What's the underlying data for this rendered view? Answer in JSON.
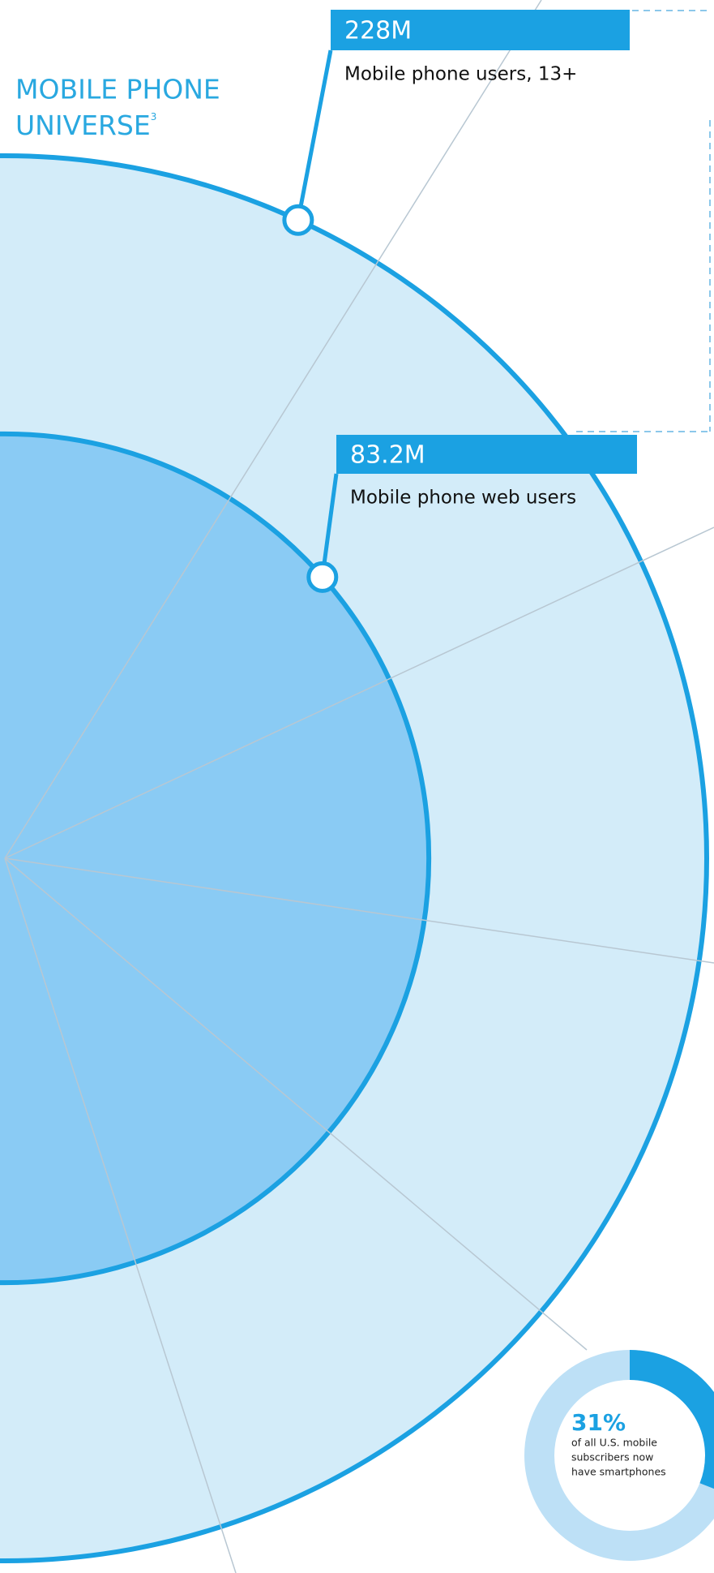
{
  "title_lines": [
    "MOBILE PHONE",
    "UNIVERSE"
  ],
  "footnote_mark": "3",
  "callouts": [
    {
      "value": 228,
      "value_label": "228M",
      "label": "Mobile phone users, 13+"
    },
    {
      "value": 83.2,
      "value_label": "83.2M",
      "label": "Mobile phone web users"
    }
  ],
  "donut": {
    "value": 31,
    "value_label": "31%",
    "text_lines": [
      "of all U.S. mobile",
      "subscribers now",
      "have smartphones"
    ]
  }
}
